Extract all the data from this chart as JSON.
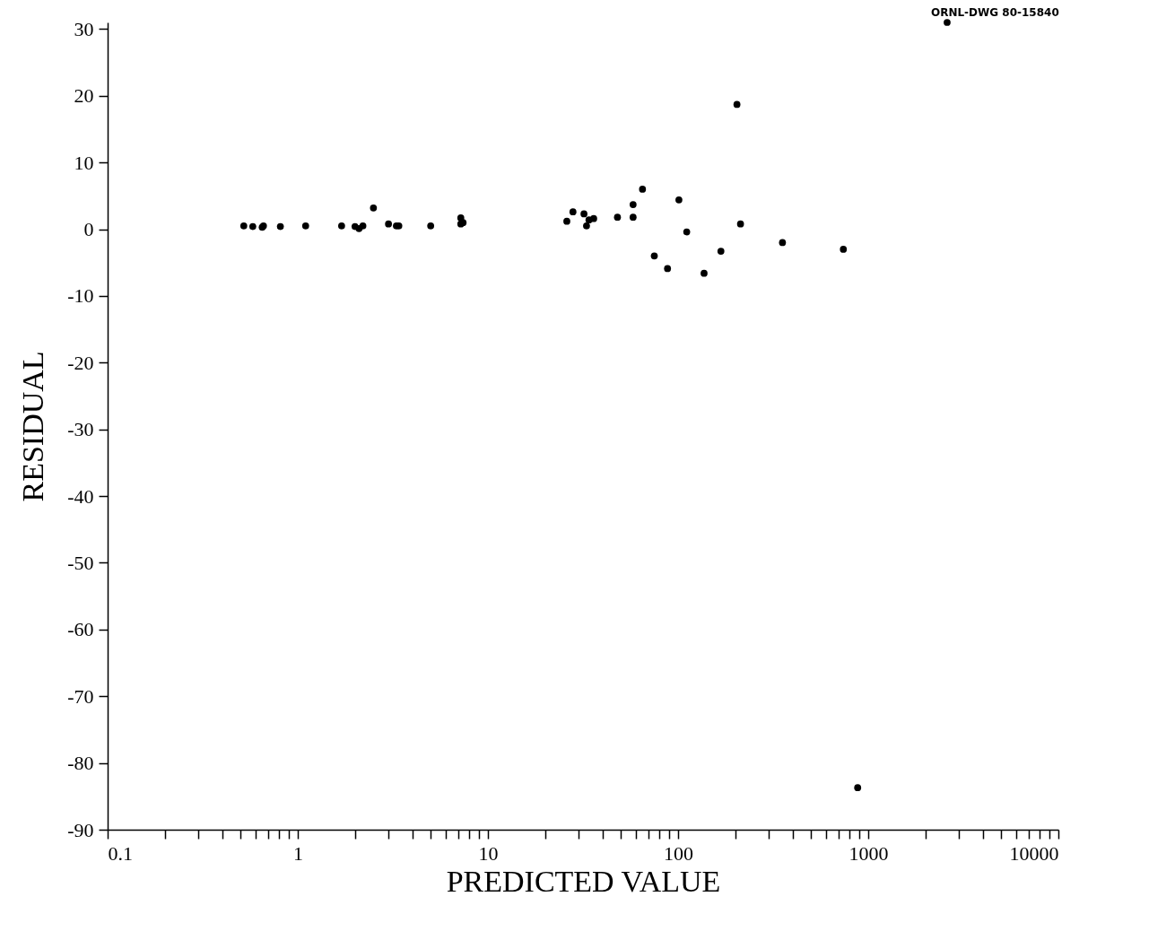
{
  "chart_data": {
    "type": "scatter",
    "xlabel": "PREDICTED VALUE",
    "ylabel": "RESIDUAL",
    "annotations": [
      "ORNL-DWG 80-15840"
    ],
    "log": "x",
    "marker": "circle",
    "grid": false,
    "xlim": [
      0.1,
      10000
    ],
    "xticks": [
      0.1,
      {
        "value": 0.2,
        "label": null
      },
      {
        "value": 0.3,
        "label": null
      },
      {
        "value": 0.4,
        "label": null
      },
      {
        "value": 0.5,
        "label": null
      },
      {
        "value": 0.6,
        "label": null
      },
      {
        "value": 0.7,
        "label": null
      },
      {
        "value": 0.8,
        "label": null
      },
      {
        "value": 0.9,
        "label": null
      },
      1,
      {
        "value": 2,
        "label": null
      },
      {
        "value": 3,
        "label": null
      },
      {
        "value": 4,
        "label": null
      },
      {
        "value": 5,
        "label": null
      },
      {
        "value": 6,
        "label": null
      },
      {
        "value": 7,
        "label": null
      },
      {
        "value": 8,
        "label": null
      },
      {
        "value": 9,
        "label": null
      },
      10,
      {
        "value": 20,
        "label": null
      },
      {
        "value": 30,
        "label": null
      },
      {
        "value": 40,
        "label": null
      },
      {
        "value": 50,
        "label": null
      },
      {
        "value": 60,
        "label": null
      },
      {
        "value": 70,
        "label": null
      },
      {
        "value": 80,
        "label": null
      },
      {
        "value": 90,
        "label": null
      },
      100,
      {
        "value": 200,
        "label": null
      },
      {
        "value": 300,
        "label": null
      },
      {
        "value": 400,
        "label": null
      },
      {
        "value": 500,
        "label": null
      },
      {
        "value": 600,
        "label": null
      },
      {
        "value": 700,
        "label": null
      },
      {
        "value": 800,
        "label": null
      },
      {
        "value": 900,
        "label": null
      },
      1000,
      {
        "value": 2000,
        "label": null
      },
      {
        "value": 3000,
        "label": null
      },
      {
        "value": 4000,
        "label": null
      },
      {
        "value": 5000,
        "label": null
      },
      {
        "value": 6000,
        "label": null
      },
      {
        "value": 7000,
        "label": null
      },
      {
        "value": 8000,
        "label": null
      },
      {
        "value": 9000,
        "label": null
      },
      10000
    ],
    "ylim": [
      -90,
      31
    ],
    "yticks": [
      -90,
      -80,
      -70,
      -60,
      -50,
      -40,
      -30,
      -20,
      -10,
      0,
      10,
      20,
      30
    ],
    "series": [
      {
        "color": "#000000",
        "x": [
          0.52,
          0.58,
          0.65,
          0.66,
          0.81,
          1.1,
          1.7,
          2.0,
          2.1,
          2.2,
          2.5,
          3.0,
          3.3,
          3.4,
          5.0,
          7.2,
          7.2,
          7.4,
          26,
          28,
          32,
          33,
          34,
          36,
          48,
          58,
          58,
          65,
          75,
          88,
          101,
          111,
          137,
          168,
          204,
          213,
          354,
          740,
          880,
          2600
        ],
        "values": [
          0.5,
          0.4,
          0.3,
          0.5,
          0.4,
          0.5,
          0.5,
          0.4,
          0.1,
          0.5,
          3.2,
          0.8,
          0.5,
          0.5,
          0.5,
          1.7,
          0.8,
          1.0,
          1.2,
          2.6,
          2.3,
          0.5,
          1.4,
          1.6,
          1.8,
          3.7,
          1.8,
          6.0,
          -4.0,
          -5.9,
          4.4,
          -0.4,
          -6.6,
          -3.3,
          18.7,
          0.8,
          -2.0,
          -3.0,
          -83.7,
          31
        ]
      }
    ]
  }
}
